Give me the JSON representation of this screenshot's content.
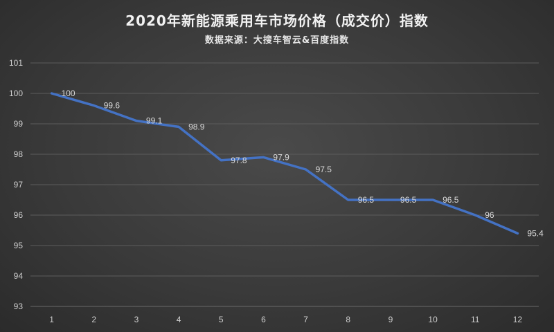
{
  "chart_data": {
    "type": "line",
    "title": "2020年新能源乘用车市场价格（成交价）指数",
    "subtitle": "数据来源：大搜车智云&百度指数",
    "categories": [
      "1",
      "2",
      "3",
      "4",
      "5",
      "6",
      "7",
      "8",
      "9",
      "10",
      "11",
      "12"
    ],
    "series": [
      {
        "values": [
          100,
          99.6,
          99.1,
          98.9,
          97.8,
          97.9,
          97.5,
          96.5,
          96.5,
          96.5,
          96,
          95.4
        ]
      }
    ],
    "data_labels": [
      "100",
      "99.6",
      "99.1",
      "98.9",
      "97.8",
      "97.9",
      "97.5",
      "96.5",
      "96.5",
      "96.5",
      "96",
      "95.4"
    ],
    "y_ticks": [
      "93",
      "94",
      "95",
      "96",
      "97",
      "98",
      "99",
      "100",
      "101"
    ],
    "ylim": [
      93,
      101
    ],
    "grid": true,
    "legend": "none",
    "colors": {
      "line": "#4472c4",
      "background": "#3a3a3a",
      "text": "#f2f2f2"
    }
  }
}
